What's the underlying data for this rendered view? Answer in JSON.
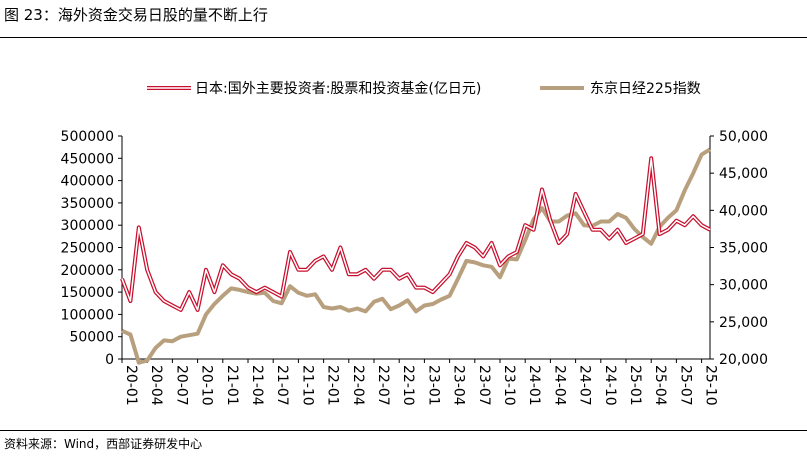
{
  "figure": {
    "title": "图 23：海外资金交易日股的量不断上行",
    "source": "资料来源：Wind，西部证券研发中心"
  },
  "chart_data": {
    "type": "line",
    "x_ticks": [
      "20-01",
      "20-04",
      "20-07",
      "20-10",
      "21-01",
      "21-04",
      "21-07",
      "21-10",
      "22-01",
      "22-04",
      "22-07",
      "22-10",
      "23-01",
      "23-04",
      "23-07",
      "23-10",
      "24-01",
      "24-04",
      "24-07",
      "24-10",
      "25-01",
      "25-04",
      "25-07",
      "25-10"
    ],
    "x_range": [
      "20-01",
      "25-11"
    ],
    "y_left": {
      "ticks": [
        "0",
        "50000",
        "100000",
        "150000",
        "200000",
        "250000",
        "300000",
        "350000",
        "400000",
        "450000",
        "500000"
      ],
      "range": [
        0,
        500000
      ]
    },
    "y_right": {
      "ticks": [
        "20,000",
        "25,000",
        "30,000",
        "35,000",
        "40,000",
        "45,000",
        "50,000"
      ],
      "range": [
        20000,
        50000
      ]
    },
    "grid": false,
    "legend_position": "top",
    "series": [
      {
        "name": "日本:国外主要投资者:股票和投资基金(亿日元)",
        "axis": "left",
        "style": "double-line",
        "color": "#c8102e",
        "points": [
          [
            "20-01",
            180000
          ],
          [
            "20-02",
            130000
          ],
          [
            "20-03",
            295000
          ],
          [
            "20-04",
            200000
          ],
          [
            "20-05",
            150000
          ],
          [
            "20-06",
            130000
          ],
          [
            "20-07",
            120000
          ],
          [
            "20-08",
            110000
          ],
          [
            "20-09",
            150000
          ],
          [
            "20-10",
            110000
          ],
          [
            "20-11",
            200000
          ],
          [
            "20-12",
            150000
          ],
          [
            "21-01",
            210000
          ],
          [
            "21-02",
            190000
          ],
          [
            "21-03",
            180000
          ],
          [
            "21-04",
            160000
          ],
          [
            "21-05",
            150000
          ],
          [
            "21-06",
            160000
          ],
          [
            "21-07",
            150000
          ],
          [
            "21-08",
            140000
          ],
          [
            "21-09",
            240000
          ],
          [
            "21-10",
            200000
          ],
          [
            "21-11",
            200000
          ],
          [
            "21-12",
            220000
          ],
          [
            "22-01",
            230000
          ],
          [
            "22-02",
            200000
          ],
          [
            "22-03",
            250000
          ],
          [
            "22-04",
            190000
          ],
          [
            "22-05",
            190000
          ],
          [
            "22-06",
            200000
          ],
          [
            "22-07",
            180000
          ],
          [
            "22-08",
            200000
          ],
          [
            "22-09",
            200000
          ],
          [
            "22-10",
            180000
          ],
          [
            "22-11",
            190000
          ],
          [
            "22-12",
            160000
          ],
          [
            "23-01",
            160000
          ],
          [
            "23-02",
            150000
          ],
          [
            "23-03",
            170000
          ],
          [
            "23-04",
            190000
          ],
          [
            "23-05",
            230000
          ],
          [
            "23-06",
            260000
          ],
          [
            "23-07",
            250000
          ],
          [
            "23-08",
            230000
          ],
          [
            "23-09",
            260000
          ],
          [
            "23-10",
            210000
          ],
          [
            "23-11",
            230000
          ],
          [
            "23-12",
            240000
          ],
          [
            "24-01",
            300000
          ],
          [
            "24-02",
            290000
          ],
          [
            "24-03",
            380000
          ],
          [
            "24-04",
            310000
          ],
          [
            "24-05",
            260000
          ],
          [
            "24-06",
            280000
          ],
          [
            "24-07",
            370000
          ],
          [
            "24-08",
            330000
          ],
          [
            "24-09",
            290000
          ],
          [
            "24-10",
            290000
          ],
          [
            "24-11",
            270000
          ],
          [
            "24-12",
            290000
          ],
          [
            "25-01",
            260000
          ],
          [
            "25-02",
            270000
          ],
          [
            "25-03",
            280000
          ],
          [
            "25-04",
            450000
          ],
          [
            "25-05",
            280000
          ],
          [
            "25-06",
            290000
          ],
          [
            "25-07",
            310000
          ],
          [
            "25-08",
            300000
          ],
          [
            "25-09",
            320000
          ],
          [
            "25-10",
            300000
          ],
          [
            "25-11",
            290000
          ]
        ]
      },
      {
        "name": "东京日经225指数",
        "axis": "right",
        "style": "solid-thick",
        "color": "#b8a07e",
        "points": [
          [
            "20-01",
            23800
          ],
          [
            "20-02",
            23300
          ],
          [
            "20-03",
            19500
          ],
          [
            "20-04",
            19800
          ],
          [
            "20-05",
            21500
          ],
          [
            "20-06",
            22500
          ],
          [
            "20-07",
            22400
          ],
          [
            "20-08",
            23000
          ],
          [
            "20-09",
            23200
          ],
          [
            "20-10",
            23400
          ],
          [
            "20-11",
            26000
          ],
          [
            "20-12",
            27400
          ],
          [
            "21-01",
            28500
          ],
          [
            "21-02",
            29500
          ],
          [
            "21-03",
            29300
          ],
          [
            "21-04",
            29000
          ],
          [
            "21-05",
            28800
          ],
          [
            "21-06",
            28900
          ],
          [
            "21-07",
            27800
          ],
          [
            "21-08",
            27500
          ],
          [
            "21-09",
            29800
          ],
          [
            "21-10",
            28900
          ],
          [
            "21-11",
            28500
          ],
          [
            "21-12",
            28700
          ],
          [
            "22-01",
            27000
          ],
          [
            "22-02",
            26800
          ],
          [
            "22-03",
            27000
          ],
          [
            "22-04",
            26500
          ],
          [
            "22-05",
            26800
          ],
          [
            "22-06",
            26400
          ],
          [
            "22-07",
            27700
          ],
          [
            "22-08",
            28100
          ],
          [
            "22-09",
            26700
          ],
          [
            "22-10",
            27200
          ],
          [
            "22-11",
            27900
          ],
          [
            "22-12",
            26400
          ],
          [
            "23-01",
            27200
          ],
          [
            "23-02",
            27400
          ],
          [
            "23-03",
            28000
          ],
          [
            "23-04",
            28500
          ],
          [
            "23-05",
            30800
          ],
          [
            "23-06",
            33200
          ],
          [
            "23-07",
            33000
          ],
          [
            "23-08",
            32600
          ],
          [
            "23-09",
            32400
          ],
          [
            "23-10",
            31000
          ],
          [
            "23-11",
            33500
          ],
          [
            "23-12",
            33400
          ],
          [
            "24-01",
            36000
          ],
          [
            "24-02",
            38800
          ],
          [
            "24-03",
            40300
          ],
          [
            "24-04",
            38500
          ],
          [
            "24-05",
            38500
          ],
          [
            "24-06",
            39300
          ],
          [
            "24-07",
            39600
          ],
          [
            "24-08",
            38000
          ],
          [
            "24-09",
            37900
          ],
          [
            "24-10",
            38500
          ],
          [
            "24-11",
            38500
          ],
          [
            "24-12",
            39500
          ],
          [
            "25-01",
            39000
          ],
          [
            "25-02",
            37500
          ],
          [
            "25-03",
            36400
          ],
          [
            "25-04",
            35500
          ],
          [
            "25-05",
            37800
          ],
          [
            "25-06",
            39000
          ],
          [
            "25-07",
            40000
          ],
          [
            "25-08",
            42700
          ],
          [
            "25-09",
            45000
          ],
          [
            "25-10",
            47500
          ],
          [
            "25-11",
            48200
          ]
        ]
      }
    ]
  }
}
